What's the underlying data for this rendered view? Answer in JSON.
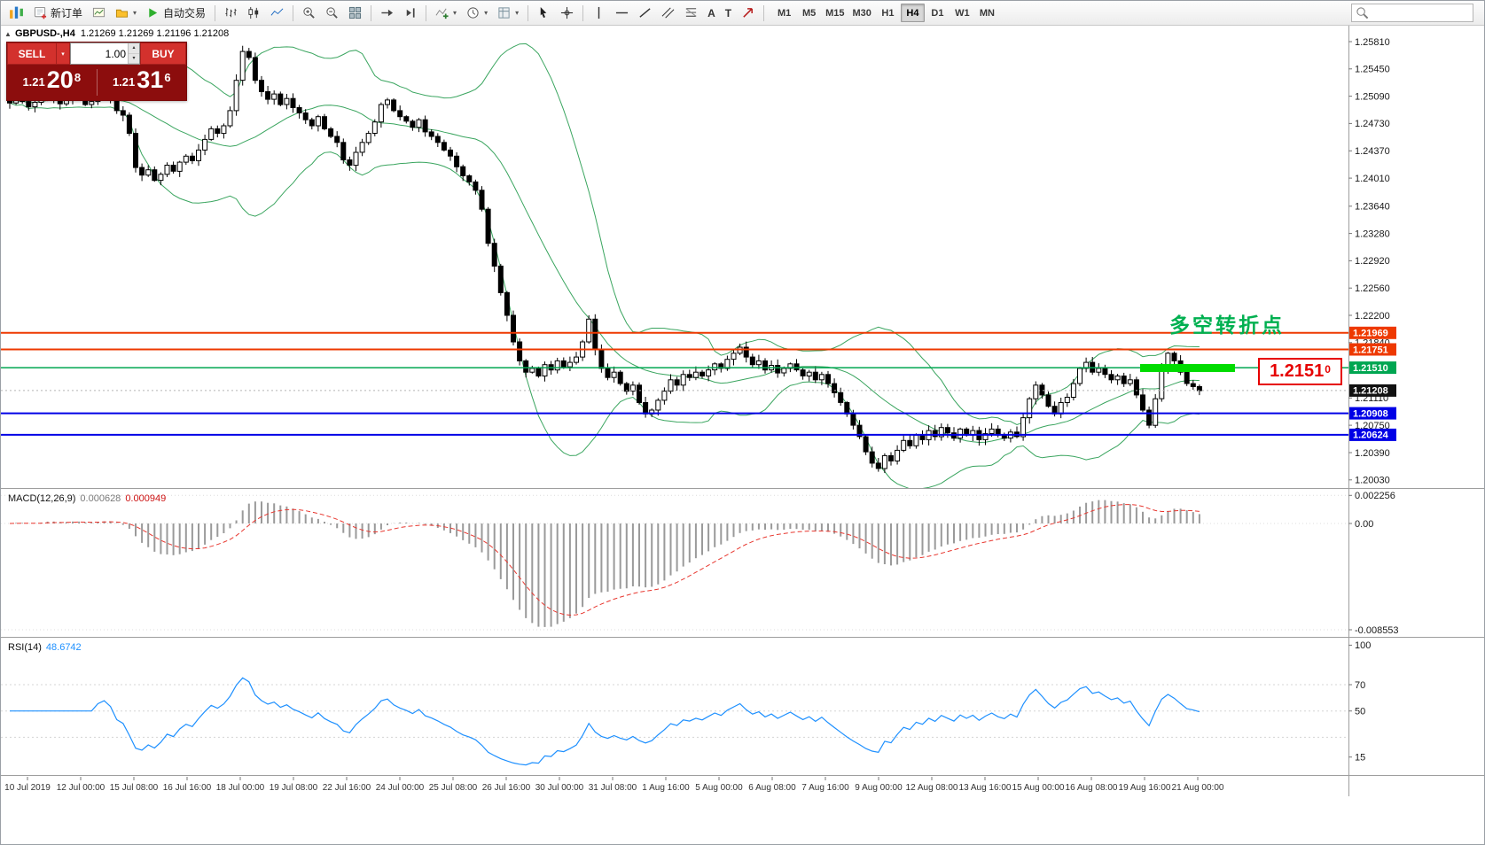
{
  "toolbar": {
    "new_order": "新订单",
    "auto_trading": "自动交易",
    "timeframes": [
      "M1",
      "M5",
      "M15",
      "M30",
      "H1",
      "H4",
      "D1",
      "W1",
      "MN"
    ],
    "active_timeframe": "H4",
    "search_placeholder": ""
  },
  "icons": {
    "collapse": "▲",
    "caret": "▾",
    "spin_up": "▴",
    "spin_down": "▾",
    "text_tool": "A",
    "label_tool": "T"
  },
  "chart": {
    "symbol": "GBPUSD-,H4",
    "ohlc_text": "1.21269 1.21269 1.21196 1.21208",
    "trade_panel": {
      "sell_label": "SELL",
      "buy_label": "BUY",
      "volume": "1.00",
      "bid": {
        "prefix": "1.21",
        "big": "20",
        "sup": "8"
      },
      "ask": {
        "prefix": "1.21",
        "big": "31",
        "sup": "6"
      }
    },
    "annotation": "多空转折点",
    "callout": {
      "main": "1.2151",
      "sup": "0"
    }
  },
  "macd": {
    "label": "MACD(12,26,9)",
    "value_main": "0.000628",
    "value_signal": "0.000949",
    "ticks": [
      {
        "text": "0.002256",
        "value": 0.002256
      },
      {
        "text": "0.00",
        "value": 0
      },
      {
        "text": "-0.008553",
        "value": -0.008553
      }
    ]
  },
  "rsi": {
    "label": "RSI(14)",
    "value": "48.6742",
    "ticks": [
      {
        "text": "100",
        "value": 100
      },
      {
        "text": "70",
        "value": 70
      },
      {
        "text": "50",
        "value": 50
      },
      {
        "text": "15",
        "value": 15
      }
    ],
    "levels": [
      70,
      50,
      30
    ]
  },
  "colors": {
    "candle_up": "#ffffff",
    "candle_down": "#000000",
    "bands": "#3aa55f",
    "macd_hist": "#9a9a9a",
    "macd_signal": "#e8372f",
    "rsi": "#1e90ff",
    "line_orange": "#ee3900",
    "line_green": "#00a651",
    "line_blue": "#0000e6",
    "current_tag": "#111111",
    "highlight_green": "#00dc00",
    "callout_red": "#e60000",
    "annotation_green": "#00b050",
    "panel_red": "#9e1111",
    "button_red": "#d3312d"
  },
  "chart_data": {
    "type": "candlestick",
    "symbol": "GBPUSD",
    "timeframe": "H4",
    "ohlc_current": {
      "open": 1.21269,
      "high": 1.21269,
      "low": 1.21196,
      "close": 1.21208
    },
    "y_range": [
      1.1992,
      1.2602
    ],
    "y_ticks": [
      "1.25810",
      "1.25450",
      "1.25090",
      "1.24730",
      "1.24370",
      "1.24010",
      "1.23640",
      "1.23280",
      "1.22920",
      "1.22560",
      "1.22200",
      "1.21840",
      "1.21110",
      "1.20750",
      "1.20390",
      "1.20030"
    ],
    "x_labels": [
      "10 Jul 2019",
      "12 Jul 00:00",
      "15 Jul 08:00",
      "16 Jul 16:00",
      "18 Jul 00:00",
      "19 Jul 08:00",
      "22 Jul 16:00",
      "24 Jul 00:00",
      "25 Jul 08:00",
      "26 Jul 16:00",
      "30 Jul 00:00",
      "31 Jul 08:00",
      "1 Aug 16:00",
      "5 Aug 00:00",
      "6 Aug 08:00",
      "7 Aug 16:00",
      "9 Aug 00:00",
      "12 Aug 08:00",
      "13 Aug 16:00",
      "15 Aug 00:00",
      "16 Aug 08:00",
      "19 Aug 16:00",
      "21 Aug 00:00"
    ],
    "horizontal_lines": [
      {
        "price": 1.21969,
        "color": "#ee3900",
        "weight": 2,
        "tag": "1.21969"
      },
      {
        "price": 1.21751,
        "color": "#ee3900",
        "weight": 2,
        "tag": "1.21751"
      },
      {
        "price": 1.2151,
        "color": "#00a651",
        "weight": 1.5,
        "tag": "1.21510"
      },
      {
        "price": 1.20908,
        "color": "#0000e6",
        "weight": 2,
        "tag": "1.20908"
      },
      {
        "price": 1.20624,
        "color": "#0000e6",
        "weight": 2,
        "tag": "1.20624"
      }
    ],
    "price_tags": [
      {
        "text": "1.21969",
        "price": 1.21969,
        "color": "#ee3900"
      },
      {
        "text": "1.21751",
        "price": 1.21751,
        "color": "#ee3900"
      },
      {
        "text": "1.21510",
        "price": 1.2151,
        "color": "#00a651"
      },
      {
        "text": "1.21208",
        "price": 1.21208,
        "color": "#111111"
      },
      {
        "text": "1.20908",
        "price": 1.20908,
        "color": "#0000e6"
      },
      {
        "text": "1.20624",
        "price": 1.20624,
        "color": "#0000e6"
      }
    ],
    "highlight_rect_price": 1.2151,
    "indicators": {
      "bollinger_period": 20,
      "bollinger_deviation": 2,
      "macd": [
        12,
        26,
        9
      ],
      "rsi_period": 14,
      "macd_main_value": 0.000628,
      "macd_signal_value": 0.000949,
      "rsi_value": 48.6742
    },
    "closes": [
      1.25,
      1.2506,
      1.2502,
      1.2495,
      1.2501,
      1.2508,
      1.2512,
      1.2506,
      1.2499,
      1.2504,
      1.251,
      1.2505,
      1.2498,
      1.2502,
      1.2509,
      1.2513,
      1.2507,
      1.249,
      1.2484,
      1.246,
      1.2415,
      1.2405,
      1.2412,
      1.2398,
      1.2406,
      1.2418,
      1.241,
      1.2422,
      1.243,
      1.2424,
      1.2438,
      1.2452,
      1.2466,
      1.246,
      1.247,
      1.249,
      1.253,
      1.2568,
      1.256,
      1.253,
      1.2515,
      1.2505,
      1.2512,
      1.2498,
      1.2506,
      1.2494,
      1.2487,
      1.2478,
      1.247,
      1.2482,
      1.2466,
      1.2456,
      1.2448,
      1.2425,
      1.2418,
      1.2435,
      1.2448,
      1.246,
      1.2475,
      1.2498,
      1.2504,
      1.249,
      1.2482,
      1.2476,
      1.2468,
      1.2478,
      1.2462,
      1.2456,
      1.2448,
      1.2438,
      1.243,
      1.2416,
      1.2404,
      1.2396,
      1.2385,
      1.236,
      1.2315,
      1.2285,
      1.225,
      1.222,
      1.2185,
      1.216,
      1.2145,
      1.215,
      1.214,
      1.2155,
      1.2148,
      1.216,
      1.2152,
      1.2158,
      1.2165,
      1.2185,
      1.2215,
      1.2175,
      1.215,
      1.2138,
      1.2145,
      1.213,
      1.212,
      1.2128,
      1.2105,
      1.209,
      1.2095,
      1.2108,
      1.212,
      1.2135,
      1.2128,
      1.2142,
      1.2138,
      1.2145,
      1.214,
      1.2148,
      1.2156,
      1.215,
      1.2162,
      1.217,
      1.2178,
      1.2165,
      1.2155,
      1.216,
      1.2148,
      1.2154,
      1.2144,
      1.215,
      1.2156,
      1.2148,
      1.214,
      1.2145,
      1.2135,
      1.2142,
      1.213,
      1.2118,
      1.2105,
      1.209,
      1.2075,
      1.206,
      1.204,
      1.2025,
      1.2018,
      1.2035,
      1.2028,
      1.2042,
      1.2055,
      1.2048,
      1.2062,
      1.2056,
      1.2068,
      1.206,
      1.2072,
      1.2065,
      1.2058,
      1.207,
      1.2062,
      1.2068,
      1.2056,
      1.2064,
      1.207,
      1.2062,
      1.2058,
      1.2066,
      1.206,
      1.2085,
      1.211,
      1.2128,
      1.2115,
      1.21,
      1.209,
      1.2105,
      1.2112,
      1.213,
      1.215,
      1.2158,
      1.2145,
      1.215,
      1.2142,
      1.2135,
      1.214,
      1.213,
      1.2135,
      1.2115,
      1.2095,
      1.2075,
      1.211,
      1.215,
      1.217,
      1.216,
      1.2145,
      1.213,
      1.2126,
      1.21208
    ]
  }
}
